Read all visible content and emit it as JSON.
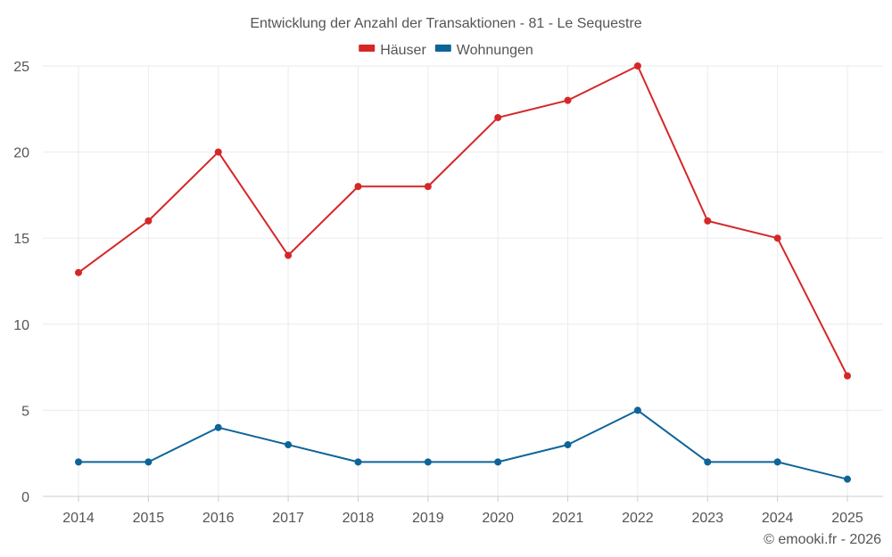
{
  "chart_data": {
    "type": "line",
    "title": "Entwicklung der Anzahl der Transaktionen - 81 - Le Sequestre",
    "categories": [
      "2014",
      "2015",
      "2016",
      "2017",
      "2018",
      "2019",
      "2020",
      "2021",
      "2022",
      "2023",
      "2024",
      "2025"
    ],
    "series": [
      {
        "name": "Häuser",
        "color": "#d62728",
        "values": [
          13,
          16,
          20,
          14,
          18,
          18,
          22,
          23,
          25,
          16,
          15,
          7
        ]
      },
      {
        "name": "Wohnungen",
        "color": "#0e6499",
        "values": [
          2,
          2,
          4,
          3,
          2,
          2,
          2,
          3,
          5,
          2,
          2,
          1
        ]
      }
    ],
    "ylim": [
      0,
      25
    ],
    "yticks": [
      0,
      5,
      10,
      15,
      20,
      25
    ],
    "xlabel": "",
    "ylabel": "",
    "grid": true,
    "legend": "top-center"
  },
  "credit": "© emooki.fr - 2026"
}
